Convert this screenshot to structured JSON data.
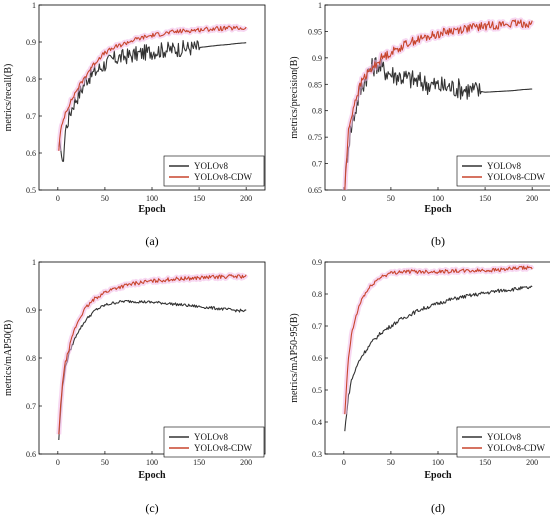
{
  "colors": {
    "baseline": "#333333",
    "cdw": "#c8452d",
    "halo": "#f0b6e6"
  },
  "chart_data": [
    {
      "type": "line",
      "panel_label": "(a)",
      "xlabel": "Epoch",
      "ylabel": "metrics/recall(B)",
      "xlim": [
        -20,
        220
      ],
      "ylim": [
        0.5,
        1.0
      ],
      "xticks": [
        0,
        50,
        100,
        150,
        200
      ],
      "yticks": [
        0.5,
        0.6,
        0.7,
        0.8,
        0.9,
        1.0
      ],
      "legend_position": "bottom-right",
      "series": [
        {
          "name": "YOLOv8",
          "color_key": "baseline",
          "noise": 0.022,
          "noise_until": 150,
          "x": [
            1,
            3,
            5,
            8,
            12,
            16,
            20,
            25,
            30,
            35,
            40,
            45,
            50,
            60,
            70,
            80,
            90,
            100,
            110,
            120,
            130,
            140,
            150,
            160,
            170,
            180,
            190,
            200
          ],
          "y": [
            0.6,
            0.63,
            0.56,
            0.66,
            0.7,
            0.73,
            0.75,
            0.77,
            0.8,
            0.81,
            0.82,
            0.83,
            0.84,
            0.855,
            0.86,
            0.865,
            0.87,
            0.875,
            0.878,
            0.88,
            0.882,
            0.884,
            0.885,
            0.888,
            0.891,
            0.893,
            0.896,
            0.898
          ]
        },
        {
          "name": "YOLOv8-CDW",
          "color_key": "cdw",
          "noise": 0.006,
          "noise_until": 200,
          "x": [
            1,
            3,
            5,
            8,
            12,
            16,
            20,
            25,
            30,
            35,
            40,
            45,
            50,
            60,
            70,
            80,
            90,
            100,
            110,
            120,
            130,
            140,
            150,
            160,
            170,
            180,
            190,
            200
          ],
          "y": [
            0.61,
            0.66,
            0.68,
            0.71,
            0.73,
            0.75,
            0.77,
            0.79,
            0.81,
            0.83,
            0.845,
            0.86,
            0.87,
            0.885,
            0.895,
            0.905,
            0.912,
            0.918,
            0.922,
            0.926,
            0.929,
            0.931,
            0.933,
            0.935,
            0.936,
            0.937,
            0.937,
            0.937
          ]
        }
      ]
    },
    {
      "type": "line",
      "panel_label": "(b)",
      "xlabel": "Epoch",
      "ylabel": "metrics/precision(B)",
      "xlim": [
        -20,
        220
      ],
      "ylim": [
        0.65,
        1.0
      ],
      "xticks": [
        0,
        50,
        100,
        150,
        200
      ],
      "yticks": [
        0.65,
        0.7,
        0.75,
        0.8,
        0.85,
        0.9,
        0.95,
        1.0
      ],
      "legend_position": "bottom-right",
      "series": [
        {
          "name": "YOLOv8",
          "color_key": "baseline",
          "noise": 0.02,
          "noise_until": 145,
          "x": [
            1,
            3,
            5,
            8,
            12,
            16,
            20,
            25,
            30,
            35,
            40,
            50,
            60,
            70,
            80,
            90,
            100,
            110,
            120,
            130,
            140,
            150,
            160,
            170,
            180,
            190,
            200
          ],
          "y": [
            0.66,
            0.7,
            0.74,
            0.77,
            0.8,
            0.83,
            0.85,
            0.87,
            0.88,
            0.89,
            0.88,
            0.87,
            0.865,
            0.86,
            0.855,
            0.85,
            0.847,
            0.845,
            0.843,
            0.84,
            0.838,
            0.835,
            0.836,
            0.837,
            0.838,
            0.84,
            0.841
          ]
        },
        {
          "name": "YOLOv8-CDW",
          "color_key": "cdw",
          "noise": 0.008,
          "noise_until": 200,
          "x": [
            1,
            3,
            5,
            8,
            12,
            16,
            20,
            25,
            30,
            35,
            40,
            50,
            60,
            70,
            80,
            90,
            100,
            110,
            120,
            130,
            140,
            150,
            160,
            170,
            180,
            190,
            200
          ],
          "y": [
            0.65,
            0.71,
            0.76,
            0.79,
            0.82,
            0.84,
            0.86,
            0.87,
            0.88,
            0.89,
            0.9,
            0.91,
            0.92,
            0.93,
            0.935,
            0.94,
            0.945,
            0.95,
            0.953,
            0.956,
            0.958,
            0.96,
            0.962,
            0.963,
            0.964,
            0.965,
            0.965
          ]
        }
      ]
    },
    {
      "type": "line",
      "panel_label": "(c)",
      "xlabel": "Epoch",
      "ylabel": "metrics/mAP50(B)",
      "xlim": [
        -20,
        220
      ],
      "ylim": [
        0.6,
        1.0
      ],
      "xticks": [
        0,
        50,
        100,
        150,
        200
      ],
      "yticks": [
        0.6,
        0.7,
        0.8,
        0.9,
        1.0
      ],
      "legend_position": "bottom-right",
      "series": [
        {
          "name": "YOLOv8",
          "color_key": "baseline",
          "noise": 0.003,
          "noise_until": 200,
          "x": [
            1,
            3,
            5,
            8,
            12,
            16,
            20,
            25,
            30,
            35,
            40,
            50,
            60,
            70,
            80,
            90,
            100,
            110,
            120,
            130,
            140,
            150,
            160,
            170,
            180,
            190,
            200
          ],
          "y": [
            0.63,
            0.69,
            0.74,
            0.78,
            0.81,
            0.83,
            0.85,
            0.865,
            0.88,
            0.89,
            0.9,
            0.91,
            0.915,
            0.918,
            0.918,
            0.917,
            0.916,
            0.915,
            0.913,
            0.911,
            0.909,
            0.907,
            0.905,
            0.903,
            0.901,
            0.899,
            0.898
          ]
        },
        {
          "name": "YOLOv8-CDW",
          "color_key": "cdw",
          "noise": 0.004,
          "noise_until": 200,
          "x": [
            1,
            3,
            5,
            8,
            12,
            16,
            20,
            25,
            30,
            35,
            40,
            50,
            60,
            70,
            80,
            90,
            100,
            110,
            120,
            130,
            140,
            150,
            160,
            170,
            180,
            190,
            200
          ],
          "y": [
            0.64,
            0.7,
            0.75,
            0.79,
            0.82,
            0.85,
            0.87,
            0.89,
            0.905,
            0.915,
            0.925,
            0.937,
            0.945,
            0.95,
            0.955,
            0.958,
            0.96,
            0.962,
            0.964,
            0.965,
            0.966,
            0.967,
            0.968,
            0.969,
            0.97,
            0.97,
            0.97
          ]
        }
      ]
    },
    {
      "type": "line",
      "panel_label": "(d)",
      "xlabel": "Epoch",
      "ylabel": "metrics/mAP50-95(B)",
      "xlim": [
        -20,
        220
      ],
      "ylim": [
        0.3,
        0.9
      ],
      "xticks": [
        0,
        50,
        100,
        150,
        200
      ],
      "yticks": [
        0.3,
        0.4,
        0.5,
        0.6,
        0.7,
        0.8,
        0.9
      ],
      "legend_position": "bottom-right",
      "series": [
        {
          "name": "YOLOv8",
          "color_key": "baseline",
          "noise": 0.006,
          "noise_until": 200,
          "x": [
            1,
            3,
            5,
            8,
            12,
            16,
            20,
            25,
            30,
            40,
            50,
            60,
            70,
            80,
            90,
            100,
            110,
            120,
            130,
            140,
            150,
            160,
            170,
            180,
            190,
            200
          ],
          "y": [
            0.37,
            0.43,
            0.48,
            0.53,
            0.56,
            0.59,
            0.61,
            0.63,
            0.65,
            0.68,
            0.7,
            0.72,
            0.735,
            0.75,
            0.76,
            0.77,
            0.78,
            0.787,
            0.793,
            0.798,
            0.803,
            0.808,
            0.812,
            0.815,
            0.818,
            0.82
          ]
        },
        {
          "name": "YOLOv8-CDW",
          "color_key": "cdw",
          "noise": 0.006,
          "noise_until": 200,
          "x": [
            1,
            3,
            5,
            8,
            12,
            16,
            20,
            25,
            30,
            40,
            50,
            60,
            70,
            80,
            90,
            100,
            110,
            120,
            130,
            140,
            150,
            160,
            170,
            180,
            190,
            200
          ],
          "y": [
            0.42,
            0.52,
            0.6,
            0.67,
            0.72,
            0.76,
            0.79,
            0.81,
            0.83,
            0.855,
            0.865,
            0.87,
            0.87,
            0.87,
            0.87,
            0.87,
            0.871,
            0.872,
            0.872,
            0.873,
            0.874,
            0.875,
            0.877,
            0.879,
            0.881,
            0.883
          ]
        }
      ]
    }
  ]
}
